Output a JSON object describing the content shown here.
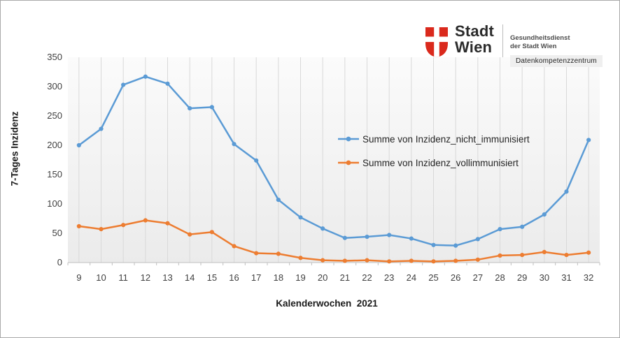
{
  "logo": {
    "brand_line1": "Stadt",
    "brand_line2": "Wien",
    "subtitle_line1": "Gesundheitsdienst",
    "subtitle_line2": "der Stadt Wien",
    "badge": "Datenkompetenzzentrum",
    "shield_color": "#da291c"
  },
  "colors": {
    "series_blue": "#5b9bd5",
    "series_orange": "#ed7d31",
    "gridline": "#d9d9d9",
    "axis_line": "#bfbfbf",
    "plot_bg_top": "#fbfbfb",
    "plot_bg_bottom": "#ebebeb"
  },
  "chart_data": {
    "type": "line",
    "title": "",
    "xlabel": "Kalenderwochen  2021",
    "ylabel": "7-Tages Inzidenz",
    "ylim": [
      0,
      350
    ],
    "yticks": [
      0,
      50,
      100,
      150,
      200,
      250,
      300,
      350
    ],
    "grid": "vertical-only",
    "legend_position": "inside-right",
    "categories": [
      9,
      10,
      11,
      12,
      13,
      14,
      15,
      16,
      17,
      18,
      19,
      20,
      21,
      22,
      23,
      24,
      25,
      26,
      27,
      28,
      29,
      30,
      31,
      32
    ],
    "series": [
      {
        "name": "Summe von Inzidenz_nicht_immunisiert",
        "color": "#5b9bd5",
        "values": [
          200,
          228,
          303,
          317,
          305,
          263,
          265,
          202,
          174,
          107,
          77,
          58,
          42,
          44,
          47,
          41,
          30,
          29,
          40,
          57,
          61,
          82,
          121,
          209
        ]
      },
      {
        "name": "Summe von Inzidenz_vollimmunisiert",
        "color": "#ed7d31",
        "values": [
          62,
          57,
          64,
          72,
          67,
          48,
          52,
          28,
          16,
          15,
          8,
          4,
          3,
          4,
          2,
          3,
          2,
          3,
          5,
          12,
          13,
          18,
          13,
          17
        ]
      }
    ]
  }
}
